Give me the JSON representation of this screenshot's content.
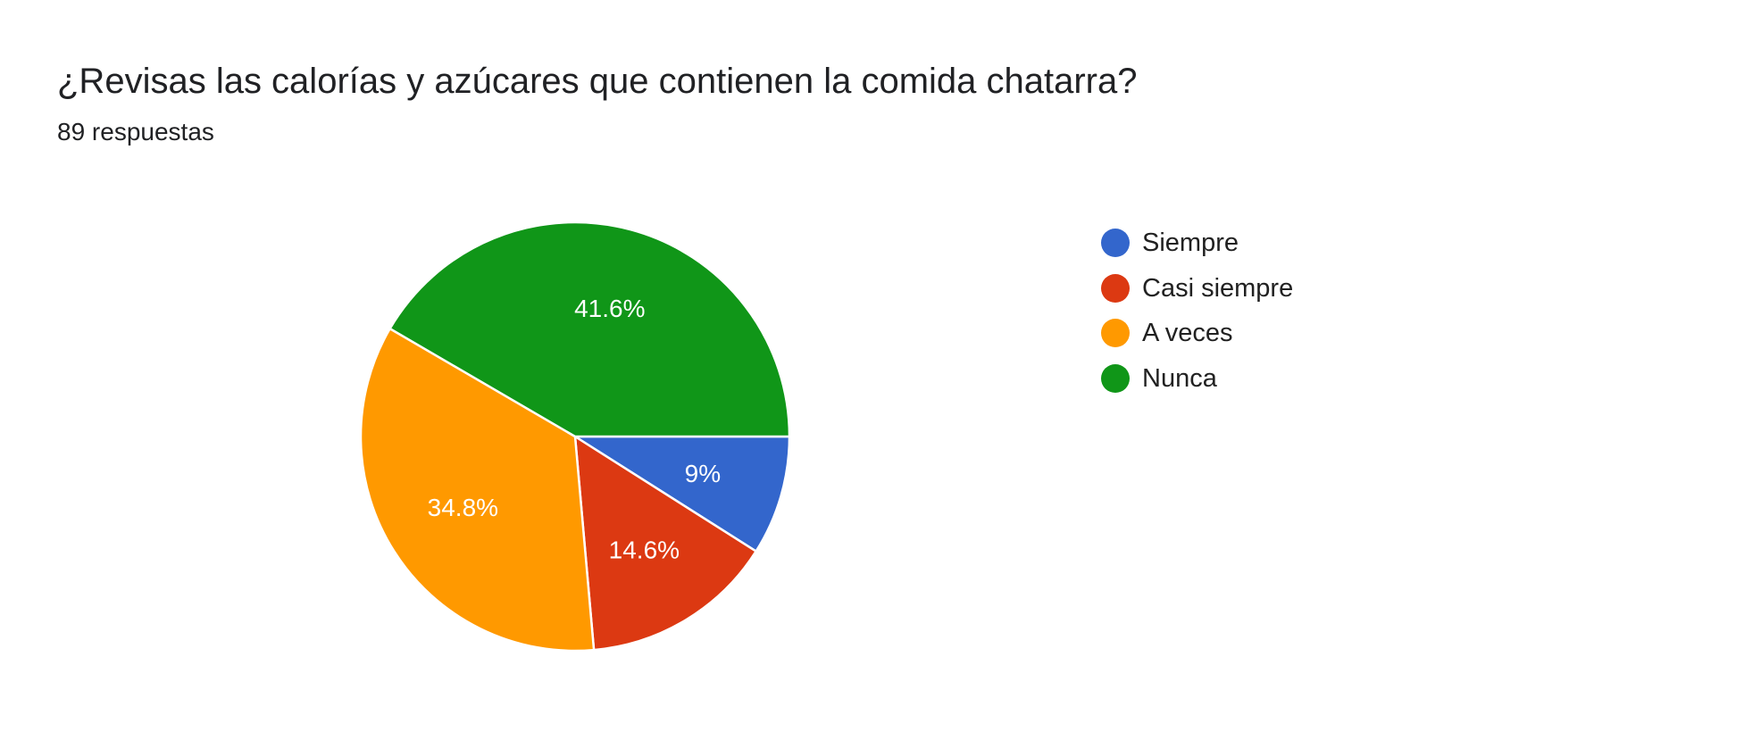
{
  "header": {
    "title": "¿Revisas las calorías y azúcares que contienen la comida chatarra?",
    "responses": "89 respuestas"
  },
  "chart_data": {
    "type": "pie",
    "categories": [
      "Siempre",
      "Casi siempre",
      "A veces",
      "Nunca"
    ],
    "values": [
      9,
      14.6,
      34.8,
      41.6
    ],
    "data_labels": [
      "9%",
      "14.6%",
      "34.8%",
      "41.6%"
    ],
    "colors": [
      "#3366cc",
      "#dc3912",
      "#ff9900",
      "#109618"
    ],
    "start_angle_deg": 90,
    "direction": "clockwise",
    "legend_position": "right"
  }
}
